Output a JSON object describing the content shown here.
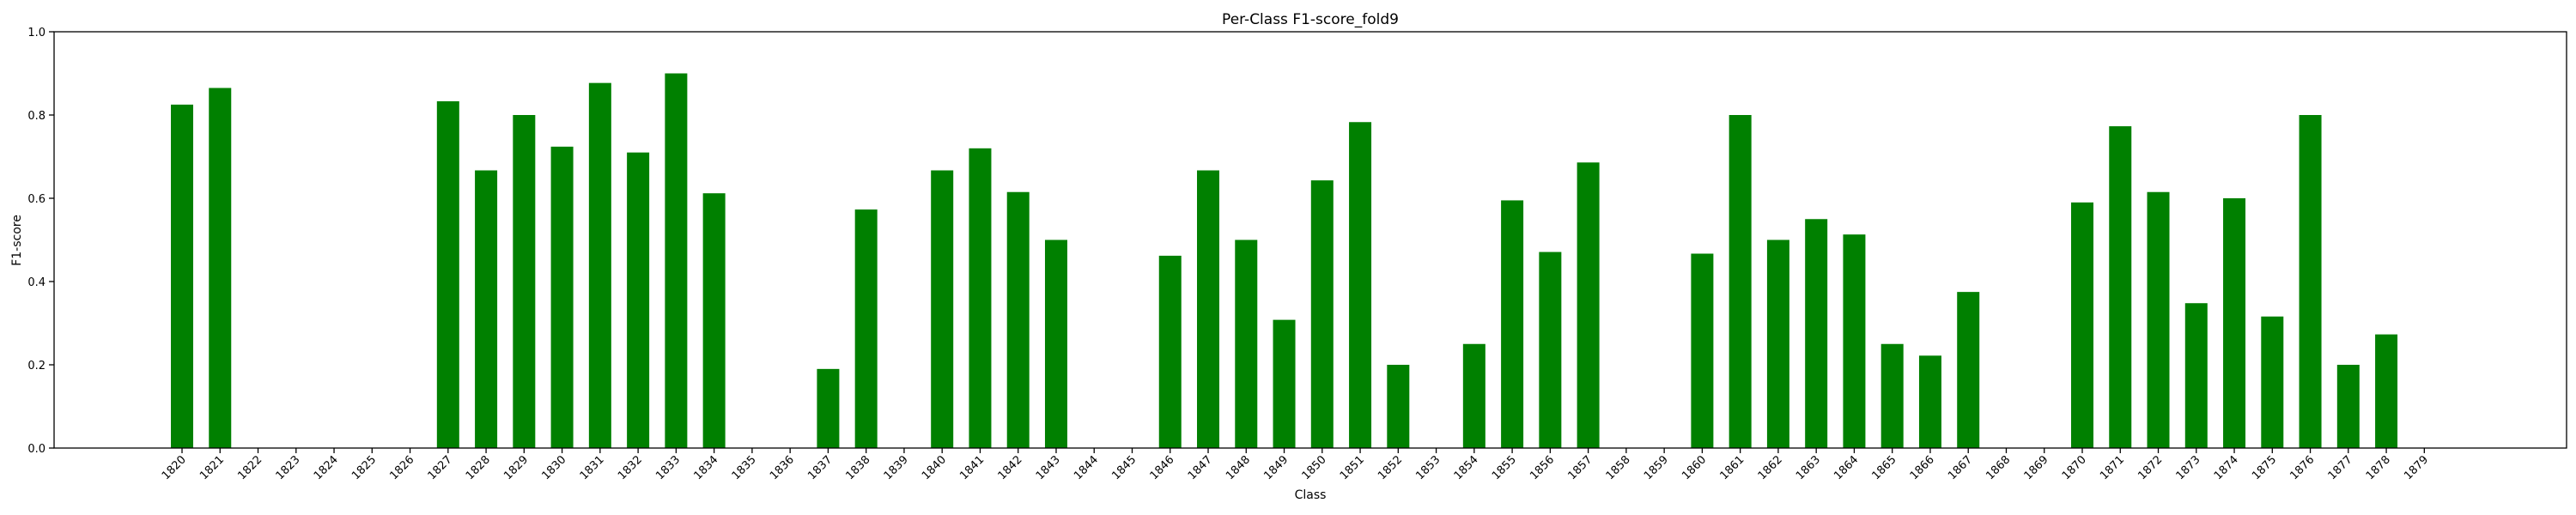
{
  "chart_data": {
    "type": "bar",
    "title": "Per-Class F1-score_fold9",
    "xlabel": "Class",
    "ylabel": "F1-score",
    "ylim": [
      0,
      1.0
    ],
    "yticks": [
      "0.0",
      "0.2",
      "0.4",
      "0.6",
      "0.8",
      "1.0"
    ],
    "grid": false,
    "bar_color": "#008000",
    "categories": [
      "1820",
      "1821",
      "1822",
      "1823",
      "1824",
      "1825",
      "1826",
      "1827",
      "1828",
      "1829",
      "1830",
      "1831",
      "1832",
      "1833",
      "1834",
      "1835",
      "1836",
      "1837",
      "1838",
      "1839",
      "1840",
      "1841",
      "1842",
      "1843",
      "1844",
      "1845",
      "1846",
      "1847",
      "1848",
      "1849",
      "1850",
      "1851",
      "1852",
      "1853",
      "1854",
      "1855",
      "1856",
      "1857",
      "1858",
      "1859",
      "1860",
      "1861",
      "1862",
      "1863",
      "1864",
      "1865",
      "1866",
      "1867",
      "1868",
      "1869",
      "1870",
      "1871",
      "1872",
      "1873",
      "1874",
      "1875",
      "1876",
      "1877",
      "1878",
      "1879"
    ],
    "values": [
      0.825,
      0.865,
      0,
      0,
      0,
      0,
      0,
      0.833,
      0.667,
      0.8,
      0.724,
      0.877,
      0.71,
      0.9,
      0.612,
      0,
      0,
      0.19,
      0.573,
      0,
      0.667,
      0.72,
      0.615,
      0.5,
      0,
      0,
      0.462,
      0.667,
      0.5,
      0.308,
      0.643,
      0.783,
      0.2,
      0,
      0.25,
      0.595,
      0.471,
      0.686,
      0,
      0,
      0.467,
      0.8,
      0.5,
      0.55,
      0.513,
      0.25,
      0.222,
      0.375,
      0,
      0,
      0.59,
      0.773,
      0.615,
      0.348,
      0.6,
      0.316,
      0.8,
      0.2,
      0.273,
      0
    ]
  }
}
